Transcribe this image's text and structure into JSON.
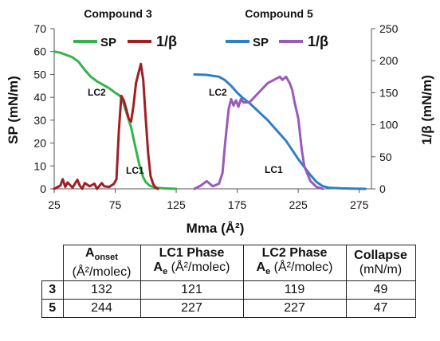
{
  "chart_data": {
    "type": "line",
    "xlabel": "Mma (Å²)",
    "ylabel_left": "SP (mN/m)",
    "ylabel_right": "1/β (mN/m)",
    "xlim": [
      25,
      285
    ],
    "ylim_left": [
      0,
      70
    ],
    "ylim_right": [
      0,
      250
    ],
    "xticks": [
      25,
      75,
      125,
      175,
      225,
      275
    ],
    "yticks_left": [
      0,
      10,
      20,
      30,
      40,
      50,
      60,
      70
    ],
    "yticks_right": [
      0,
      50,
      100,
      150,
      200,
      250
    ],
    "groups": [
      {
        "title": "Compound 3",
        "legend": [
          "SP",
          "1/β"
        ]
      },
      {
        "title": "Compound 5",
        "legend": [
          "SP",
          "1/β"
        ]
      }
    ],
    "annotations": [
      "LC2",
      "LC1",
      "LC2",
      "LC1"
    ],
    "series": [
      {
        "legend_label": "SP",
        "axis": "left",
        "color": "#36b34a",
        "x": [
          25,
          30,
          35,
          40,
          45,
          50,
          55,
          60,
          65,
          70,
          75,
          78,
          80,
          82,
          85,
          88,
          90,
          92,
          95,
          98,
          100,
          103,
          105,
          108,
          110,
          115,
          120,
          125
        ],
        "y": [
          60,
          59.5,
          58.5,
          57.5,
          55.5,
          52,
          49,
          47,
          45.5,
          44,
          42,
          41,
          40,
          37,
          32,
          27,
          22,
          17,
          10,
          5,
          3,
          1.5,
          1,
          0.6,
          0.4,
          0.2,
          0.1,
          0
        ]
      },
      {
        "legend_label": "1/β",
        "axis": "right",
        "color": "#a01e24",
        "x": [
          25,
          30,
          32,
          34,
          36,
          40,
          44,
          46,
          48,
          50,
          54,
          58,
          60,
          64,
          66,
          70,
          74,
          76,
          78,
          80,
          82,
          84,
          86,
          88,
          90,
          92,
          94,
          96,
          98,
          100,
          102,
          104,
          106,
          108,
          110
        ],
        "y": [
          0,
          5,
          15,
          3,
          10,
          2,
          14,
          5,
          0,
          9,
          4,
          8,
          0,
          9,
          4,
          3,
          8,
          15,
          90,
          145,
          138,
          125,
          110,
          105,
          130,
          165,
          180,
          195,
          170,
          110,
          55,
          20,
          8,
          2,
          0
        ]
      },
      {
        "legend_label": "SP",
        "axis": "left",
        "color": "#2f7ec8",
        "x": [
          140,
          150,
          160,
          165,
          170,
          175,
          180,
          185,
          190,
          195,
          200,
          205,
          210,
          215,
          220,
          225,
          230,
          235,
          240,
          245,
          250,
          260,
          270,
          280
        ],
        "y": [
          50,
          49.8,
          49,
          47.5,
          45,
          42,
          39.5,
          37.5,
          35,
          32.5,
          30,
          27,
          24,
          21,
          17,
          13,
          9.5,
          6,
          3,
          1.2,
          0.5,
          0.2,
          0.1,
          0
        ]
      },
      {
        "legend_label": "1/β",
        "axis": "right",
        "color": "#9a5ab8",
        "x": [
          140,
          145,
          150,
          155,
          160,
          163,
          165,
          168,
          170,
          172,
          174,
          176,
          178,
          180,
          185,
          190,
          195,
          200,
          205,
          210,
          212,
          215,
          218,
          220,
          222,
          225,
          228,
          230,
          235,
          240,
          245
        ],
        "y": [
          0,
          5,
          12,
          4,
          8,
          25,
          70,
          125,
          140,
          130,
          138,
          128,
          140,
          135,
          135,
          145,
          155,
          165,
          170,
          175,
          170,
          175,
          165,
          155,
          135,
          110,
          60,
          35,
          12,
          3,
          0
        ]
      }
    ]
  }
}
